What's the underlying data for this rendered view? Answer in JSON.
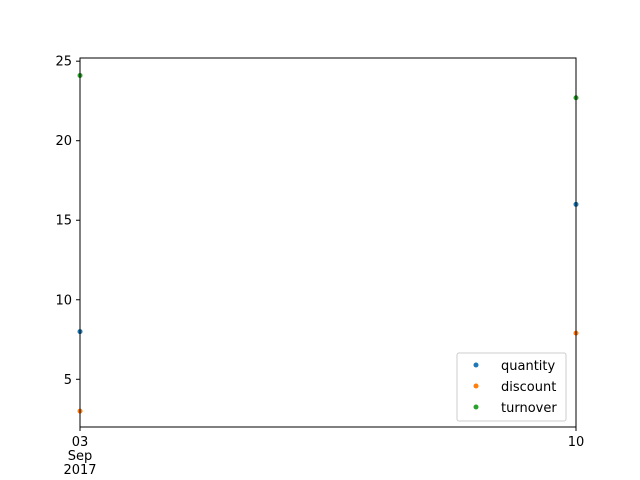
{
  "chart_data": {
    "type": "scatter",
    "title": "",
    "xlabel": "",
    "ylabel": "",
    "x": [
      "2017-09-03",
      "2017-09-10"
    ],
    "x_tick_labels": [
      {
        "date": "2017-09-03",
        "lines": [
          "03",
          "Sep",
          "2017"
        ]
      },
      {
        "date": "2017-09-10",
        "lines": [
          "10"
        ]
      }
    ],
    "ylim": [
      2,
      25.2
    ],
    "y_ticks": [
      5,
      10,
      15,
      20,
      25
    ],
    "grid": false,
    "legend_position": "lower-right",
    "series": [
      {
        "name": "quantity",
        "color": "#1f77b4",
        "values": [
          8,
          16
        ]
      },
      {
        "name": "discount",
        "color": "#ff7f0e",
        "values": [
          3,
          7.9
        ]
      },
      {
        "name": "turnover",
        "color": "#2ca02c",
        "values": [
          24.1,
          22.7
        ]
      }
    ]
  }
}
